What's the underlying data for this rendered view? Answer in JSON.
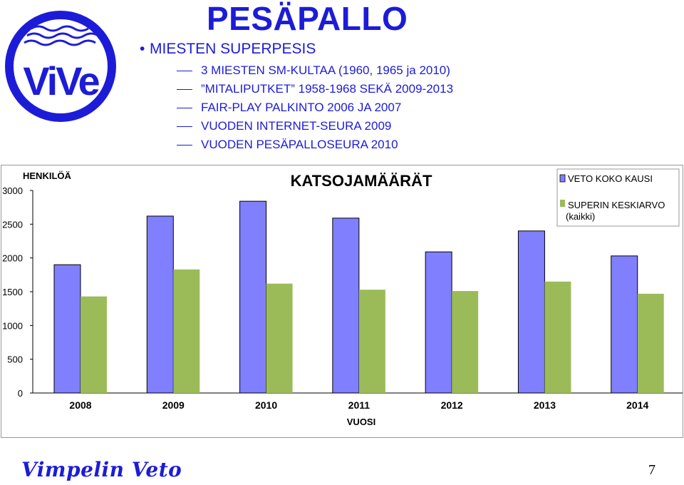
{
  "logo": {
    "text": "ViVe"
  },
  "header": {
    "title": "PESÄPALLO",
    "main_bullet": "MIESTEN SUPERPESIS",
    "sub_bullets": [
      "3 MIESTEN SM-KULTAA (1960, 1965 ja 2010)",
      "”MITALIPUTKET” 1958-1968 SEKÄ 2009-2013",
      "FAIR-PLAY PALKINTO 2006 JA 2007",
      "VUODEN INTERNET-SEURA 2009",
      "VUODEN PESÄPALLOSEURA 2010"
    ]
  },
  "chart_data": {
    "type": "bar",
    "title": "KATSOJAMÄÄRÄT",
    "ylabel": "HENKILÖÄ",
    "xlabel": "VUOSI",
    "categories": [
      "2008",
      "2009",
      "2010",
      "2011",
      "2012",
      "2013",
      "2014"
    ],
    "series": [
      {
        "name": "VETO KOKO KAUSI",
        "color": "#8080ff",
        "values": [
          1900,
          2620,
          2840,
          2590,
          2090,
          2400,
          2030
        ]
      },
      {
        "name": "SUPERIN KESKIARVO (kaikki)",
        "color": "#9bbb59",
        "values": [
          1430,
          1830,
          1620,
          1530,
          1510,
          1650,
          1470
        ]
      }
    ],
    "ylim": [
      0,
      3000
    ],
    "yticks": [
      "0",
      "500",
      "1000",
      "1500",
      "2000",
      "2500",
      "3000"
    ],
    "grid": false,
    "legend_position": "top-right"
  },
  "footer": {
    "brand": "Vimpelin Veto",
    "page_number": "7"
  }
}
